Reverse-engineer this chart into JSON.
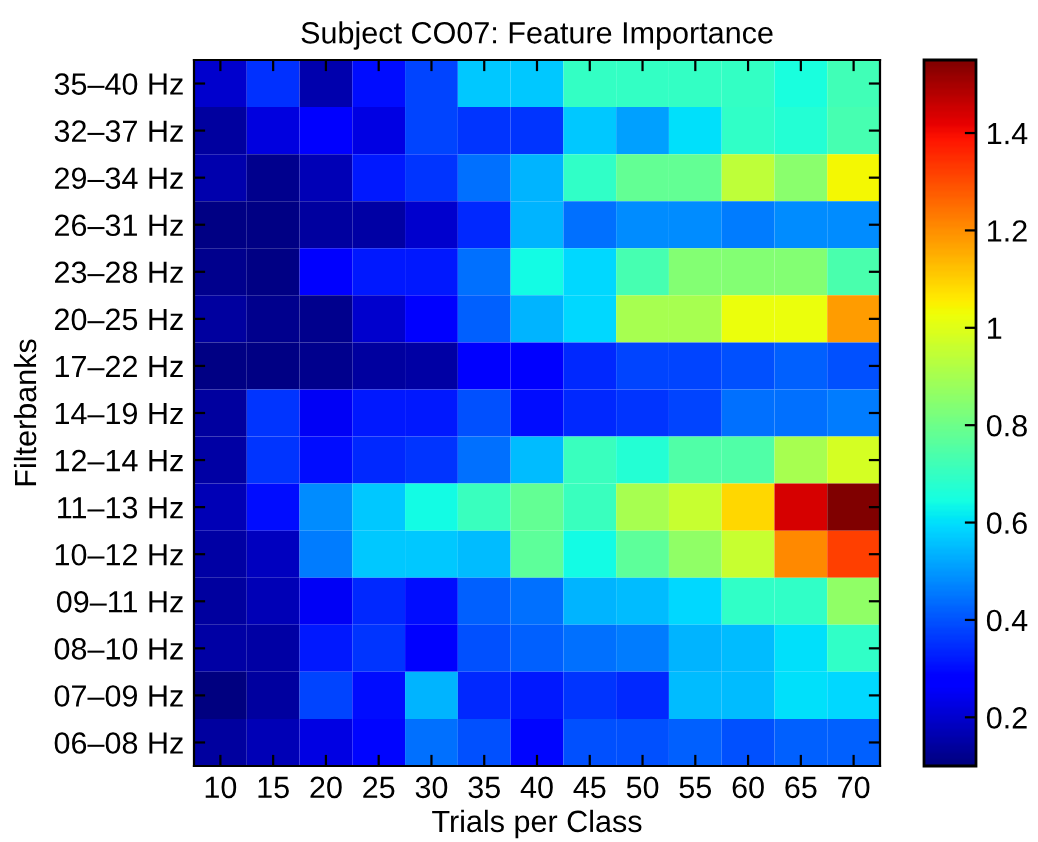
{
  "chart_data": {
    "type": "heatmap",
    "title": "Subject CO07: Feature Importance",
    "xlabel": "Trials per Class",
    "ylabel": "Filterbanks",
    "categories": [
      "10",
      "15",
      "20",
      "25",
      "30",
      "35",
      "40",
      "45",
      "50",
      "55",
      "60",
      "65",
      "70"
    ],
    "y_categories": [
      "35–40 Hz",
      "32–37 Hz",
      "29–34 Hz",
      "26–31 Hz",
      "23–28 Hz",
      "20–25 Hz",
      "17–22 Hz",
      "14–19 Hz",
      "12–14 Hz",
      "11–13 Hz",
      "10–12 Hz",
      "09–11 Hz",
      "08–10 Hz",
      "07–09 Hz",
      "06–08 Hz"
    ],
    "cells": [
      [
        0.2,
        0.35,
        0.16,
        0.3,
        0.38,
        0.57,
        0.57,
        0.7,
        0.7,
        0.7,
        0.7,
        0.65,
        0.72
      ],
      [
        0.14,
        0.22,
        0.28,
        0.23,
        0.38,
        0.36,
        0.36,
        0.57,
        0.51,
        0.6,
        0.69,
        0.67,
        0.73
      ],
      [
        0.16,
        0.12,
        0.17,
        0.32,
        0.36,
        0.44,
        0.54,
        0.69,
        0.78,
        0.78,
        0.94,
        0.85,
        1.04
      ],
      [
        0.11,
        0.11,
        0.14,
        0.15,
        0.2,
        0.34,
        0.54,
        0.44,
        0.48,
        0.48,
        0.46,
        0.48,
        0.48
      ],
      [
        0.12,
        0.11,
        0.28,
        0.32,
        0.32,
        0.44,
        0.64,
        0.59,
        0.73,
        0.84,
        0.84,
        0.84,
        0.74
      ],
      [
        0.14,
        0.12,
        0.12,
        0.2,
        0.27,
        0.42,
        0.54,
        0.59,
        0.9,
        0.9,
        1.02,
        1.02,
        1.18
      ],
      [
        0.11,
        0.11,
        0.12,
        0.14,
        0.15,
        0.27,
        0.27,
        0.34,
        0.38,
        0.38,
        0.4,
        0.42,
        0.4
      ],
      [
        0.14,
        0.36,
        0.25,
        0.32,
        0.32,
        0.4,
        0.3,
        0.34,
        0.36,
        0.38,
        0.44,
        0.44,
        0.46
      ],
      [
        0.15,
        0.36,
        0.3,
        0.34,
        0.36,
        0.44,
        0.55,
        0.71,
        0.67,
        0.75,
        0.75,
        0.9,
        0.98
      ],
      [
        0.17,
        0.3,
        0.48,
        0.57,
        0.64,
        0.71,
        0.78,
        0.71,
        0.9,
        0.96,
        1.09,
        1.44,
        1.55
      ],
      [
        0.15,
        0.18,
        0.46,
        0.57,
        0.57,
        0.55,
        0.77,
        0.64,
        0.77,
        0.86,
        0.96,
        1.21,
        1.32
      ],
      [
        0.14,
        0.17,
        0.25,
        0.34,
        0.3,
        0.42,
        0.44,
        0.54,
        0.55,
        0.59,
        0.69,
        0.69,
        0.86
      ],
      [
        0.15,
        0.15,
        0.32,
        0.36,
        0.28,
        0.4,
        0.42,
        0.44,
        0.46,
        0.54,
        0.55,
        0.6,
        0.69
      ],
      [
        0.1,
        0.14,
        0.38,
        0.3,
        0.54,
        0.34,
        0.32,
        0.36,
        0.34,
        0.55,
        0.55,
        0.6,
        0.59
      ],
      [
        0.14,
        0.17,
        0.23,
        0.29,
        0.44,
        0.4,
        0.29,
        0.4,
        0.4,
        0.42,
        0.4,
        0.42,
        0.42
      ]
    ],
    "clim": [
      0.1,
      1.55
    ],
    "cticks": [
      0.2,
      0.4,
      0.6,
      0.8,
      1,
      1.2,
      1.4
    ]
  }
}
